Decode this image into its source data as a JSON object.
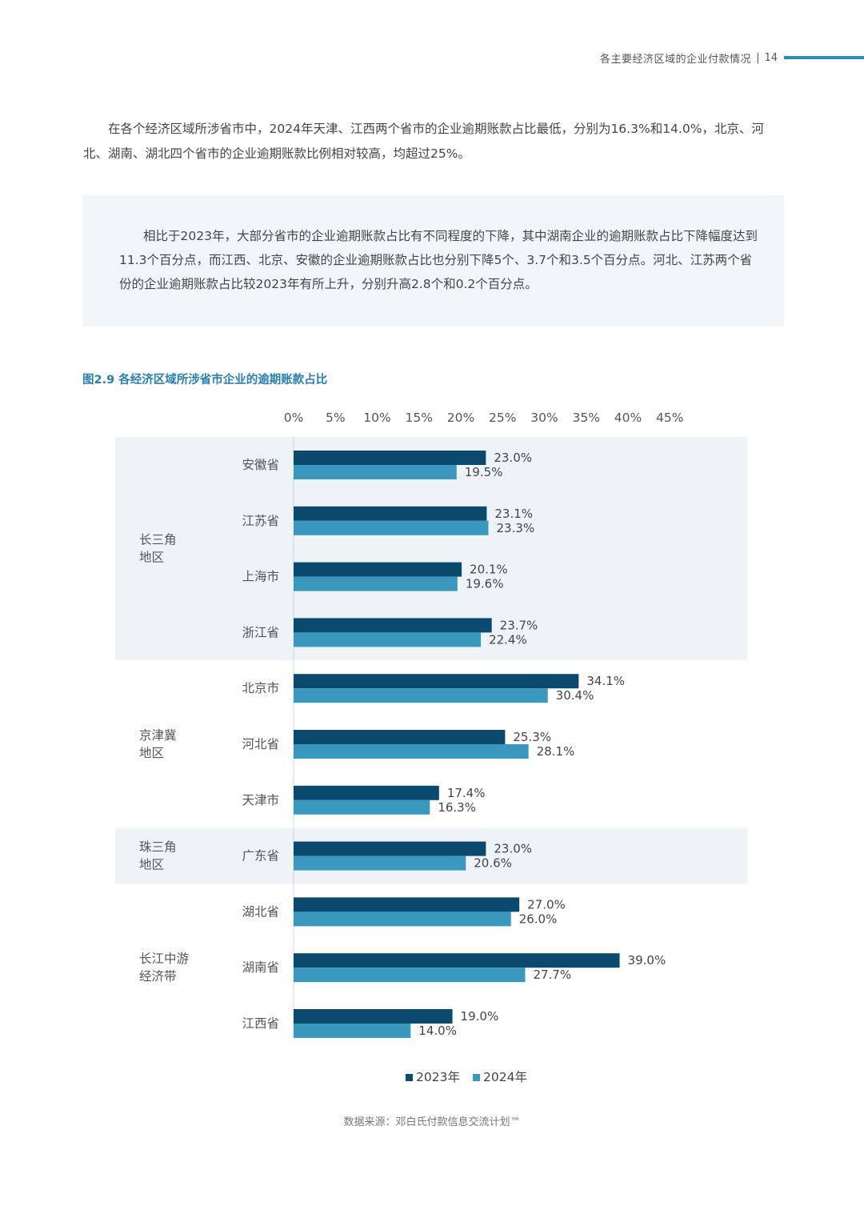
{
  "header": {
    "section_title": "各主要经济区域的企业付款情况",
    "separator": "|",
    "page_number": "14",
    "accent_color": "#2a8fb8"
  },
  "paragraph1": "在各个经济区域所涉省市中，2024年天津、江西两个省市的企业逾期账款占比最低，分别为16.3%和14.0%，北京、河北、湖南、湖北四个省市的企业逾期账款比例相对较高，均超过25%。",
  "callout": {
    "text": "相比于2023年，大部分省市的企业逾期账款占比有不同程度的下降，其中湖南企业的逾期账款占比下降幅度达到11.3个百分点，而江西、北京、安徽的企业逾期账款占比也分别下降5个、3.7个和3.5个百分点。河北、江苏两个省份的企业逾期账款占比较2023年有所上升，分别升高2.8个和0.2个百分点。"
  },
  "figure_title": "图2.9 各经济区域所涉省市企业的逾期账款占比",
  "chart_data": {
    "type": "bar",
    "orientation": "horizontal",
    "title": "图2.9 各经济区域所涉省市企业的逾期账款占比",
    "x_ticks": [
      "0%",
      "5%",
      "10%",
      "15%",
      "20%",
      "25%",
      "30%",
      "35%",
      "40%",
      "45%"
    ],
    "xlim": [
      0,
      45
    ],
    "grid": false,
    "legend_position": "bottom",
    "groups": [
      {
        "name": "长三角地区",
        "label_lines": [
          "长三角",
          "地区"
        ],
        "shaded": true,
        "categories": [
          "安徽省",
          "江苏省",
          "上海市",
          "浙江省"
        ]
      },
      {
        "name": "京津冀地区",
        "label_lines": [
          "京津冀",
          "地区"
        ],
        "shaded": false,
        "categories": [
          "北京市",
          "河北省",
          "天津市"
        ]
      },
      {
        "name": "珠三角地区",
        "label_lines": [
          "珠三角",
          "地区"
        ],
        "shaded": true,
        "categories": [
          "广东省"
        ]
      },
      {
        "name": "长江中游经济带",
        "label_lines": [
          "长江中游",
          "经济带"
        ],
        "shaded": false,
        "categories": [
          "湖北省",
          "湖南省",
          "江西省"
        ]
      }
    ],
    "categories": [
      "安徽省",
      "江苏省",
      "上海市",
      "浙江省",
      "北京市",
      "河北省",
      "天津市",
      "广东省",
      "湖北省",
      "湖南省",
      "江西省"
    ],
    "series": [
      {
        "name": "2023年",
        "color": "#0b4a6e",
        "values": [
          23.0,
          23.1,
          20.1,
          23.7,
          34.1,
          25.3,
          17.4,
          23.0,
          27.0,
          39.0,
          19.0
        ],
        "labels": [
          "23.0%",
          "23.1%",
          "20.1%",
          "23.7%",
          "34.1%",
          "25.3%",
          "17.4%",
          "23.0%",
          "27.0%",
          "39.0%",
          "19.0%"
        ]
      },
      {
        "name": "2024年",
        "color": "#3a98bf",
        "values": [
          19.5,
          23.3,
          19.6,
          22.4,
          30.4,
          28.1,
          16.3,
          20.6,
          26.0,
          27.7,
          14.0
        ],
        "labels": [
          "19.5%",
          "23.3%",
          "19.6%",
          "22.4%",
          "30.4%",
          "28.1%",
          "16.3%",
          "20.6%",
          "26.0%",
          "27.7%",
          "14.0%"
        ]
      }
    ],
    "band_color": "#eef3f8"
  },
  "source": "数据来源：邓白氏付款信息交流计划™"
}
